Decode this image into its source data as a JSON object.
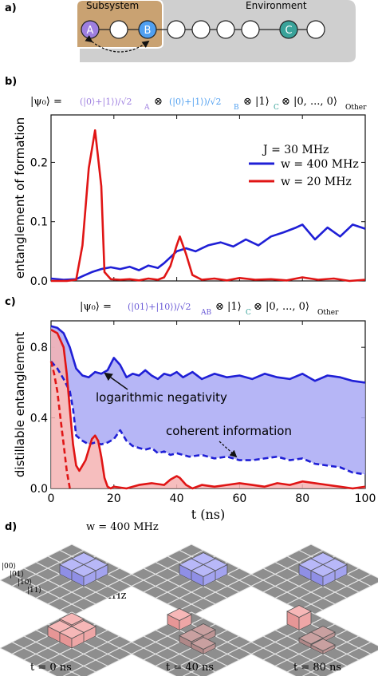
{
  "panel_labels": [
    "a)",
    "b)",
    "c)",
    "d)"
  ],
  "panel_a": {
    "subsystem_label": "Subsystem",
    "environment_label": "Environment",
    "qubit_labels": {
      "A": "A",
      "B": "B",
      "C": "C"
    },
    "colors": {
      "subsystem": "#c9a272",
      "environment": "#cfcfcf",
      "A": "#9e7fe0",
      "B": "#4f9ff0",
      "C": "#3aa39a"
    }
  },
  "panel_b": {
    "state_prefix": "|ψ₀⟩ =",
    "term_A": "(|0⟩+|1⟩)/√2",
    "sub_A": "A",
    "term_B": "(|0⟩+|1⟩)/√2",
    "sub_B": "B",
    "term_C": "⊗ |1⟩",
    "sub_C": "C",
    "term_other": "⊗ |0, ..., 0⟩",
    "sub_other": "Other",
    "otimes": "⊗"
  },
  "panel_c": {
    "state_prefix": "|ψ₀⟩ =",
    "term_AB": "(|01⟩+|10⟩)/√2",
    "sub_AB": "AB",
    "term_C": "⊗ |1⟩",
    "sub_C": "C",
    "term_other": "⊗ |0, ..., 0⟩",
    "sub_other": "Other",
    "annot_logneg": "logarithmic negativity",
    "annot_coherent": "coherent information"
  },
  "panel_d": {
    "w_high_label": "w = 400 MHz",
    "w_low_label": "w = 20 MHz",
    "basis_labels": [
      "|00⟩",
      "|01⟩",
      "|10⟩",
      "|11⟩"
    ],
    "time_labels": [
      "t = 0 ns",
      "t = 40 ns",
      "t = 80 ns"
    ]
  },
  "chart_data": [
    {
      "type": "line",
      "xlabel": "",
      "ylabel": "entanglement of formation",
      "xlim": [
        0,
        100
      ],
      "ylim": [
        0,
        0.28
      ],
      "xticks": [
        0,
        20,
        40,
        60,
        80,
        100
      ],
      "yticks": [
        0.0,
        0.1,
        0.2
      ],
      "ytick_labels": [
        "0.0",
        "0.1",
        "0.2"
      ],
      "legend_title": "J = 30 MHz",
      "legend_position": "top-right",
      "series": [
        {
          "name": "w = 400 MHz",
          "color": "#1f1fd6",
          "x": [
            0,
            4,
            8,
            10,
            13,
            16,
            19,
            22,
            25,
            28,
            31,
            34,
            36,
            38,
            40,
            43,
            46,
            50,
            54,
            58,
            62,
            66,
            70,
            74,
            78,
            80,
            84,
            88,
            92,
            96,
            100
          ],
          "y": [
            0.004,
            0.002,
            0.003,
            0.008,
            0.015,
            0.02,
            0.023,
            0.02,
            0.024,
            0.018,
            0.026,
            0.022,
            0.03,
            0.04,
            0.05,
            0.055,
            0.05,
            0.06,
            0.065,
            0.058,
            0.07,
            0.06,
            0.075,
            0.082,
            0.09,
            0.095,
            0.07,
            0.09,
            0.075,
            0.095,
            0.088
          ]
        },
        {
          "name": "w = 20 MHz",
          "color": "#e01515",
          "x": [
            0,
            5,
            8,
            10,
            12,
            14,
            16,
            17,
            19,
            22,
            25,
            28,
            31,
            34,
            36,
            38,
            40,
            41,
            43,
            45,
            48,
            52,
            56,
            60,
            65,
            70,
            75,
            80,
            85,
            90,
            95,
            100
          ],
          "y": [
            0.0,
            0.0,
            0.002,
            0.06,
            0.19,
            0.254,
            0.16,
            0.015,
            0.003,
            0.002,
            0.003,
            0.001,
            0.004,
            0.002,
            0.006,
            0.025,
            0.06,
            0.075,
            0.045,
            0.01,
            0.002,
            0.004,
            0.001,
            0.005,
            0.002,
            0.003,
            0.001,
            0.006,
            0.002,
            0.004,
            0.0,
            0.002
          ]
        }
      ]
    },
    {
      "type": "area",
      "xlabel": "t (ns)",
      "ylabel": "distillable entanglement",
      "xlim": [
        0,
        100
      ],
      "ylim": [
        0,
        0.95
      ],
      "xticks": [
        0,
        20,
        40,
        60,
        80,
        100
      ],
      "yticks": [
        0.0,
        0.4,
        0.8
      ],
      "ytick_labels": [
        "0.0",
        "0.4",
        "0.8"
      ],
      "series": [
        {
          "name": "logarithmic negativity, w = 400 MHz",
          "style": "solid",
          "fill": "#a9a9f5",
          "color": "#1f1fd6",
          "x": [
            0,
            2,
            4,
            6,
            8,
            10,
            12,
            14,
            16,
            18,
            20,
            22,
            24,
            26,
            28,
            30,
            32,
            34,
            36,
            38,
            40,
            42,
            45,
            48,
            52,
            56,
            60,
            64,
            68,
            72,
            76,
            80,
            84,
            88,
            92,
            96,
            100
          ],
          "y": [
            0.92,
            0.91,
            0.88,
            0.8,
            0.68,
            0.64,
            0.63,
            0.66,
            0.65,
            0.67,
            0.74,
            0.7,
            0.63,
            0.65,
            0.64,
            0.67,
            0.64,
            0.62,
            0.65,
            0.64,
            0.66,
            0.63,
            0.66,
            0.62,
            0.65,
            0.63,
            0.64,
            0.62,
            0.65,
            0.63,
            0.62,
            0.65,
            0.61,
            0.64,
            0.63,
            0.61,
            0.6
          ]
        },
        {
          "name": "coherent information, w = 400 MHz",
          "style": "dashed",
          "color": "#1f1fd6",
          "x": [
            0,
            2,
            4,
            6,
            7,
            8,
            10,
            12,
            14,
            16,
            18,
            20,
            22,
            24,
            26,
            28,
            30,
            32,
            34,
            36,
            38,
            40,
            44,
            48,
            52,
            56,
            60,
            64,
            68,
            72,
            76,
            80,
            84,
            88,
            92,
            96,
            100
          ],
          "y": [
            0.72,
            0.68,
            0.62,
            0.55,
            0.45,
            0.3,
            0.27,
            0.25,
            0.26,
            0.25,
            0.26,
            0.28,
            0.33,
            0.27,
            0.24,
            0.23,
            0.22,
            0.23,
            0.2,
            0.21,
            0.19,
            0.2,
            0.18,
            0.19,
            0.17,
            0.18,
            0.16,
            0.16,
            0.17,
            0.18,
            0.16,
            0.17,
            0.14,
            0.13,
            0.12,
            0.09,
            0.08
          ]
        },
        {
          "name": "logarithmic negativity, w = 20 MHz",
          "style": "solid",
          "fill": "#f5b3b3",
          "color": "#e01515",
          "x": [
            0,
            2,
            4,
            5,
            6,
            7,
            8,
            9,
            10,
            11,
            12,
            13,
            14,
            15,
            16,
            17,
            18,
            19,
            20,
            24,
            28,
            32,
            36,
            38,
            40,
            41,
            43,
            45,
            48,
            52,
            56,
            60,
            64,
            68,
            72,
            76,
            80,
            84,
            88,
            92,
            96,
            100
          ],
          "y": [
            0.9,
            0.88,
            0.8,
            0.65,
            0.45,
            0.25,
            0.13,
            0.1,
            0.13,
            0.16,
            0.22,
            0.28,
            0.3,
            0.27,
            0.18,
            0.06,
            0.01,
            0.0,
            0.01,
            0.0,
            0.02,
            0.03,
            0.02,
            0.05,
            0.07,
            0.06,
            0.02,
            0.0,
            0.02,
            0.01,
            0.02,
            0.03,
            0.02,
            0.01,
            0.03,
            0.02,
            0.04,
            0.03,
            0.02,
            0.01,
            0.0,
            0.01
          ]
        },
        {
          "name": "coherent information, w = 20 MHz",
          "style": "dashed",
          "color": "#e01515",
          "x": [
            0,
            1,
            2,
            3,
            4,
            5,
            6
          ],
          "y": [
            0.72,
            0.65,
            0.55,
            0.4,
            0.25,
            0.1,
            0.0
          ]
        }
      ]
    }
  ]
}
